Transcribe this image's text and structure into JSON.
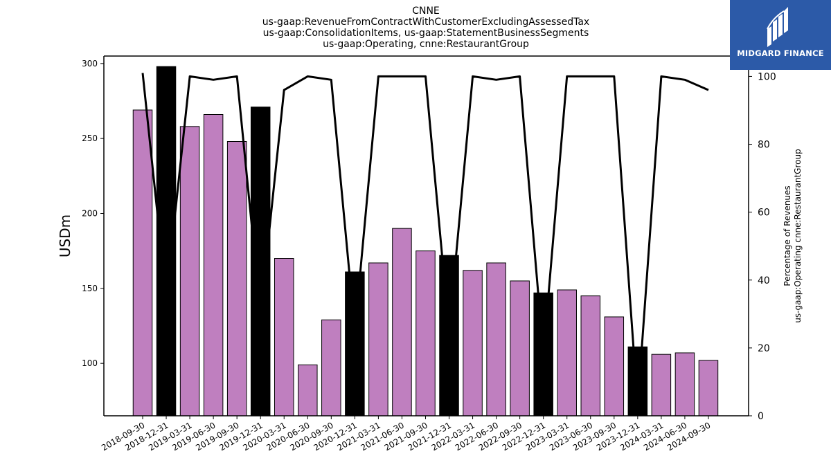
{
  "chart_data": {
    "type": "bar",
    "title_lines": [
      "CNNE",
      "us-gaap:RevenueFromContractWithCustomerExcludingAssessedTax",
      "us-gaap:ConsolidationItems, us-gaap:StatementBusinessSegments",
      "us-gaap:Operating, cnne:RestaurantGroup"
    ],
    "ylabel_left": "USDm",
    "ylabel_right_lines": [
      "Percentage of Revenues",
      "us-gaap:Operating cnne:RestaurantGroup"
    ],
    "ylim_left": [
      65,
      305
    ],
    "yticks_left": [
      100,
      150,
      200,
      250,
      300
    ],
    "ylim_right": [
      0,
      106
    ],
    "yticks_right": [
      0,
      20,
      40,
      60,
      80,
      100
    ],
    "categories": [
      "2018-09-30",
      "2018-12-31",
      "2019-03-31",
      "2019-06-30",
      "2019-09-30",
      "2019-12-31",
      "2020-03-31",
      "2020-06-30",
      "2020-09-30",
      "2020-12-31",
      "2021-03-31",
      "2021-06-30",
      "2021-09-30",
      "2021-12-31",
      "2022-03-31",
      "2022-06-30",
      "2022-09-30",
      "2022-12-31",
      "2023-03-31",
      "2023-06-30",
      "2023-09-30",
      "2023-12-31",
      "2024-03-31",
      "2024-06-30",
      "2024-09-30"
    ],
    "series": [
      {
        "kind": "bar",
        "values": [
          269,
          298,
          258,
          266,
          248,
          271,
          170,
          99,
          129,
          161,
          167,
          190,
          175,
          172,
          162,
          167,
          155,
          147,
          149,
          145,
          131,
          111,
          106,
          107,
          102
        ],
        "colors": [
          "#bf7fbf",
          "#000000",
          "#bf7fbf",
          "#bf7fbf",
          "#bf7fbf",
          "#000000",
          "#bf7fbf",
          "#bf7fbf",
          "#bf7fbf",
          "#000000",
          "#bf7fbf",
          "#bf7fbf",
          "#bf7fbf",
          "#000000",
          "#bf7fbf",
          "#bf7fbf",
          "#bf7fbf",
          "#000000",
          "#bf7fbf",
          "#bf7fbf",
          "#bf7fbf",
          "#000000",
          "#bf7fbf",
          "#bf7fbf",
          "#bf7fbf"
        ]
      },
      {
        "kind": "line",
        "axis": "right",
        "values": [
          101,
          35,
          100,
          99,
          100,
          30,
          96,
          100,
          99,
          25,
          100,
          100,
          100,
          25,
          100,
          99,
          100,
          18,
          100,
          100,
          100,
          3,
          100,
          99,
          96
        ]
      }
    ],
    "bar_default_color": "#bf7fbf",
    "bar_highlight_color": "#000000"
  },
  "logo": {
    "text": "MIDGARD FINANCE",
    "background": "#2c5aa8"
  }
}
